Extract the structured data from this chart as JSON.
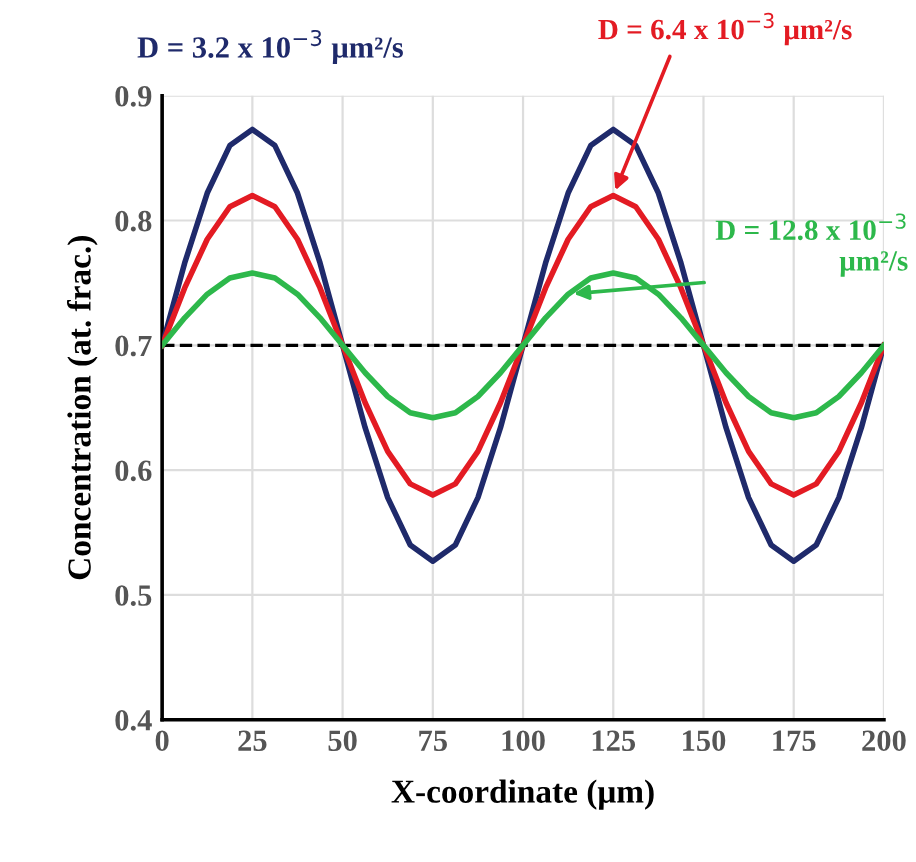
{
  "chart_data": {
    "type": "line",
    "xlabel": "X-coordinate (μm)",
    "ylabel": "Concentration (at. frac.)",
    "x": [
      0,
      6.25,
      12.5,
      18.75,
      25,
      31.25,
      37.5,
      43.75,
      50,
      56.25,
      62.5,
      68.75,
      75,
      81.25,
      87.5,
      93.75,
      100,
      106.25,
      112.5,
      118.75,
      125,
      131.25,
      137.5,
      143.75,
      150,
      156.25,
      162.5,
      168.75,
      175,
      181.25,
      187.5,
      193.75,
      200
    ],
    "series": [
      {
        "name": "D = 3.2 x 10$^{−3}$ μm²/s",
        "color": "#1f2a6b",
        "values": [
          0.7,
          0.766,
          0.822,
          0.86,
          0.873,
          0.86,
          0.822,
          0.766,
          0.7,
          0.634,
          0.578,
          0.54,
          0.527,
          0.54,
          0.578,
          0.634,
          0.7,
          0.766,
          0.822,
          0.86,
          0.873,
          0.86,
          0.822,
          0.766,
          0.7,
          0.634,
          0.578,
          0.54,
          0.527,
          0.54,
          0.578,
          0.634,
          0.7
        ]
      },
      {
        "name": "D = 6.4 x 10$^{−3}$ μm²/s",
        "color": "#e31b23",
        "values": [
          0.7,
          0.746,
          0.785,
          0.811,
          0.82,
          0.811,
          0.785,
          0.746,
          0.7,
          0.654,
          0.615,
          0.589,
          0.58,
          0.589,
          0.615,
          0.654,
          0.7,
          0.746,
          0.785,
          0.811,
          0.82,
          0.811,
          0.785,
          0.746,
          0.7,
          0.654,
          0.615,
          0.589,
          0.58,
          0.589,
          0.615,
          0.654,
          0.7
        ]
      },
      {
        "name": "D = 12.8 x 10$^{−3}$ μm²/s",
        "color": "#2db84b",
        "values": [
          0.7,
          0.722,
          0.741,
          0.754,
          0.758,
          0.754,
          0.741,
          0.722,
          0.7,
          0.678,
          0.659,
          0.646,
          0.642,
          0.646,
          0.659,
          0.678,
          0.7,
          0.722,
          0.741,
          0.754,
          0.758,
          0.754,
          0.741,
          0.722,
          0.7,
          0.678,
          0.659,
          0.646,
          0.642,
          0.646,
          0.659,
          0.678,
          0.7
        ]
      }
    ],
    "xlim": [
      0,
      200
    ],
    "xticks": [
      0,
      25,
      50,
      75,
      100,
      125,
      150,
      175,
      200
    ],
    "ylim": [
      0.4,
      0.9
    ],
    "yticks": [
      {
        "value": 0.4,
        "label": "0.4"
      },
      {
        "value": 0.5,
        "label": "0.5"
      },
      {
        "value": 0.6,
        "label": "0.6"
      },
      {
        "value": 0.7,
        "label": "0.7"
      },
      {
        "value": 0.8,
        "label": "0.8"
      },
      {
        "value": 0.9,
        "label": "0.9"
      }
    ],
    "ref_lines": [
      {
        "axis": "y",
        "value": 0.7,
        "label": null,
        "color": "#000000",
        "line_style": "dashed"
      }
    ],
    "grid": true,
    "marker": "none",
    "line_style": "solid",
    "legend": false
  }
}
